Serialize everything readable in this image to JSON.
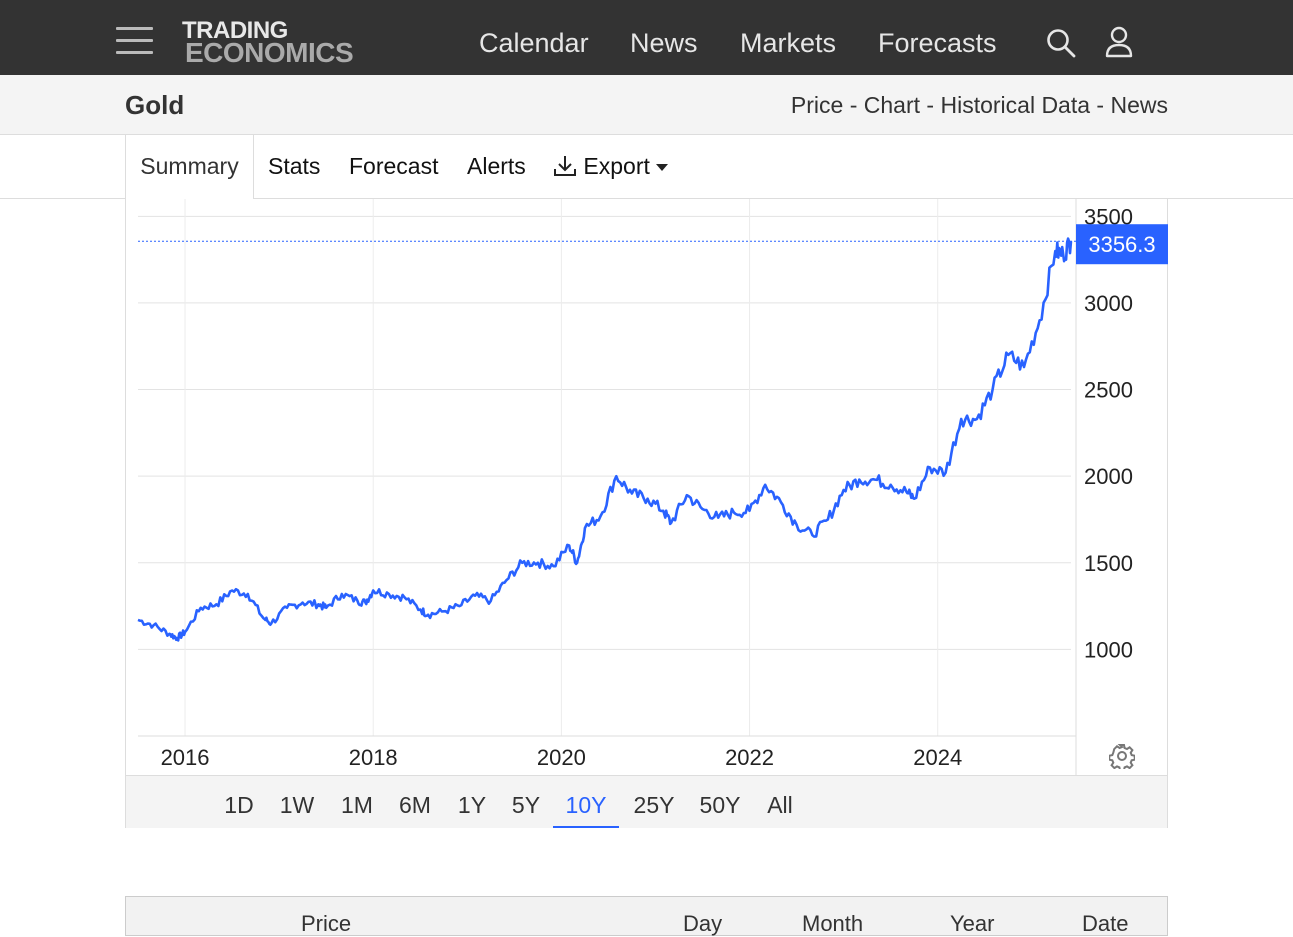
{
  "header": {
    "logo_top": "TRADING",
    "logo_bottom": "ECONOMICS",
    "nav": [
      "Calendar",
      "News",
      "Markets",
      "Forecasts"
    ],
    "icons": [
      "menu-icon",
      "search-icon",
      "user-icon"
    ]
  },
  "title_bar": {
    "title": "Gold",
    "links": [
      "Price",
      "Chart",
      "Historical Data",
      "News"
    ],
    "separator": " - "
  },
  "tabs": {
    "summary": "Summary",
    "stats": "Stats",
    "forecast": "Forecast",
    "alerts": "Alerts",
    "export": "Export"
  },
  "ranges": [
    "1D",
    "1W",
    "1M",
    "6M",
    "1Y",
    "5Y",
    "10Y",
    "25Y",
    "50Y",
    "All"
  ],
  "active_range": "10Y",
  "table_header": [
    "Price",
    "Day",
    "Month",
    "Year",
    "Date"
  ],
  "colors": {
    "line": "#2962ff",
    "topbar": "#333333",
    "label_bg": "#2962ff"
  },
  "chart_data": {
    "type": "line",
    "title": "",
    "xlabel": "",
    "ylabel": "",
    "x_ticks": [
      "2016",
      "2018",
      "2020",
      "2022",
      "2024"
    ],
    "y_ticks": [
      "1000",
      "1500",
      "2000",
      "2500",
      "3000",
      "3500"
    ],
    "ylim": [
      500,
      3600
    ],
    "xlim": [
      "2015-07",
      "2025-06"
    ],
    "last_value": "3356.3",
    "grid": true,
    "series": [
      {
        "name": "",
        "x": [
          "2015-07",
          "2015-09",
          "2015-11",
          "2015-12",
          "2016-01",
          "2016-03",
          "2016-05",
          "2016-07",
          "2016-09",
          "2016-11",
          "2016-12",
          "2017-02",
          "2017-04",
          "2017-06",
          "2017-07",
          "2017-09",
          "2017-11",
          "2017-12",
          "2018-01",
          "2018-03",
          "2018-05",
          "2018-07",
          "2018-08",
          "2018-10",
          "2018-12",
          "2019-02",
          "2019-04",
          "2019-06",
          "2019-08",
          "2019-10",
          "2019-12",
          "2020-02",
          "2020-03",
          "2020-04",
          "2020-06",
          "2020-08",
          "2020-10",
          "2020-12",
          "2021-02",
          "2021-03",
          "2021-05",
          "2021-07",
          "2021-09",
          "2021-11",
          "2022-01",
          "2022-03",
          "2022-05",
          "2022-07",
          "2022-09",
          "2022-11",
          "2023-01",
          "2023-03",
          "2023-05",
          "2023-07",
          "2023-09",
          "2023-10",
          "2023-12",
          "2024-02",
          "2024-04",
          "2024-06",
          "2024-08",
          "2024-10",
          "2024-12",
          "2025-02",
          "2025-04",
          "2025-05",
          "2025-06"
        ],
        "y": [
          1170,
          1140,
          1090,
          1065,
          1100,
          1240,
          1260,
          1340,
          1320,
          1180,
          1150,
          1240,
          1270,
          1260,
          1240,
          1320,
          1280,
          1270,
          1340,
          1320,
          1300,
          1230,
          1200,
          1220,
          1250,
          1310,
          1280,
          1400,
          1500,
          1500,
          1480,
          1600,
          1500,
          1700,
          1770,
          2000,
          1900,
          1870,
          1800,
          1730,
          1890,
          1810,
          1760,
          1790,
          1800,
          1950,
          1850,
          1720,
          1660,
          1750,
          1920,
          1980,
          1980,
          1950,
          1910,
          1870,
          2050,
          2020,
          2330,
          2330,
          2500,
          2700,
          2630,
          2900,
          3300,
          3280,
          3356
        ]
      }
    ]
  }
}
